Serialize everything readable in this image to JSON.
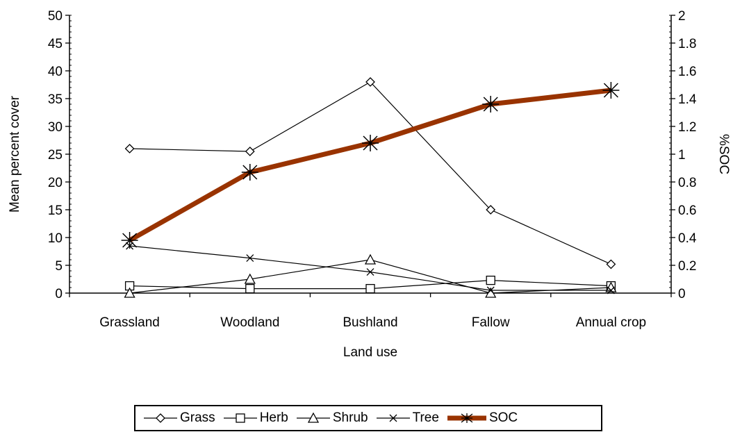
{
  "chart_data": {
    "type": "line",
    "xlabel": "Land use",
    "ylabel": "Mean percent cover",
    "y2label": "%SOC",
    "categories": [
      "Grassland",
      "Woodland",
      "Bushland",
      "Fallow",
      "Annual crop"
    ],
    "ylim": [
      0,
      50
    ],
    "yticks": [
      "0",
      "5",
      "10",
      "15",
      "20",
      "25",
      "30",
      "35",
      "40",
      "45",
      "50"
    ],
    "y2lim": [
      0,
      2
    ],
    "y2ticks": [
      "0",
      "0.2",
      "0.4",
      "0.6",
      "0.8",
      "1",
      "1.2",
      "1.4",
      "1.6",
      "1.8",
      "2"
    ],
    "grid": false,
    "legend_position": "bottom",
    "series": [
      {
        "name": "Grass",
        "axis": "left",
        "marker": "diamond",
        "values": [
          26,
          25.5,
          38,
          15,
          5.2
        ]
      },
      {
        "name": "Herb",
        "axis": "left",
        "marker": "square",
        "values": [
          1.3,
          0.8,
          0.8,
          2.3,
          1.3
        ]
      },
      {
        "name": "Shrub",
        "axis": "left",
        "marker": "triangle",
        "values": [
          0,
          2.5,
          6,
          0,
          1
        ]
      },
      {
        "name": "Tree",
        "axis": "left",
        "marker": "x",
        "values": [
          8.5,
          6.3,
          3.8,
          0.5,
          0.5
        ]
      },
      {
        "name": "SOC",
        "axis": "right",
        "marker": "star",
        "color": "#993300",
        "values": [
          0.38,
          0.87,
          1.08,
          1.36,
          1.46
        ]
      }
    ]
  }
}
